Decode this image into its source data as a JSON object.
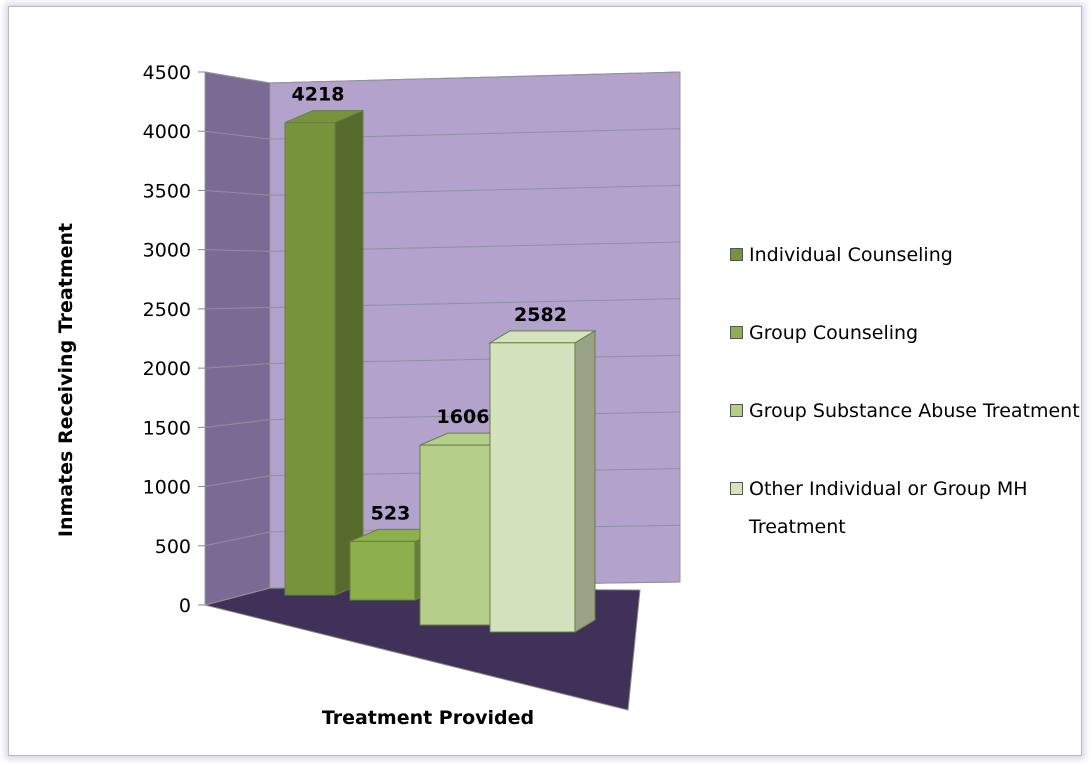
{
  "chart_data": {
    "type": "bar3d",
    "x_label": "Treatment Provided",
    "y_label": "Inmates Receiving Treatment",
    "categories": [
      null
    ],
    "series": [
      {
        "name": "Individual Counseling",
        "color": "#77933c",
        "values": [
          4218
        ]
      },
      {
        "name": "Group Counseling",
        "color": "#8db04c",
        "values": [
          523
        ]
      },
      {
        "name": "Group Substance Abuse Treatment",
        "color": "#b5cf8a",
        "values": [
          1606
        ]
      },
      {
        "name": "Other Individual or Group MH Treatment",
        "color": "#d4e2bd",
        "values": [
          2582
        ]
      }
    ],
    "ylim": [
      0,
      4500
    ],
    "yticks": [
      0,
      500,
      1000,
      1500,
      2000,
      2500,
      3000,
      3500,
      4000,
      4500
    ],
    "grid": true,
    "legend": "right"
  }
}
